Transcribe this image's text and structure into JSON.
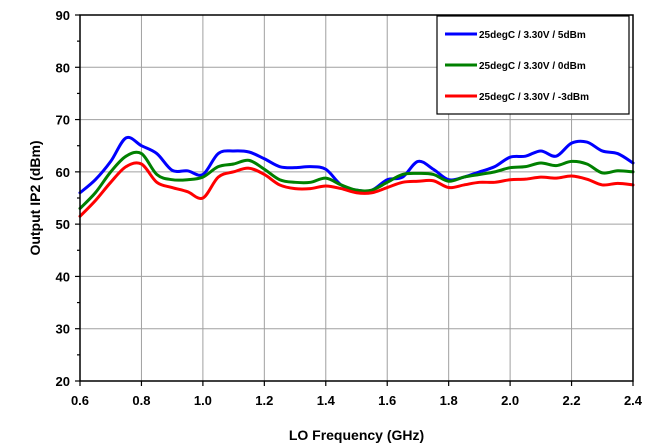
{
  "chart_data": {
    "type": "line",
    "title": "",
    "xlabel": "LO Frequency (GHz)",
    "ylabel": "Output  IP2 (dBm)",
    "xlim": [
      0.6,
      2.4
    ],
    "ylim": [
      20,
      90
    ],
    "xticks": [
      "0.6",
      "0.8",
      "1.0",
      "1.2",
      "1.4",
      "1.6",
      "1.8",
      "2.0",
      "2.2",
      "2.4"
    ],
    "yticks": [
      "20",
      "30",
      "40",
      "50",
      "60",
      "70",
      "80",
      "90"
    ],
    "grid": true,
    "legend_position": "top-right",
    "series": [
      {
        "name": "25degC /  3.30V /  5dBm",
        "color": "#0000ff",
        "x": [
          0.6,
          0.65,
          0.7,
          0.75,
          0.8,
          0.85,
          0.9,
          0.95,
          1.0,
          1.05,
          1.1,
          1.15,
          1.2,
          1.25,
          1.3,
          1.35,
          1.4,
          1.45,
          1.5,
          1.55,
          1.6,
          1.65,
          1.7,
          1.75,
          1.8,
          1.85,
          1.9,
          1.95,
          2.0,
          2.05,
          2.1,
          2.15,
          2.2,
          2.25,
          2.3,
          2.35,
          2.4
        ],
        "y": [
          56.0,
          58.5,
          62.0,
          66.5,
          65.0,
          63.5,
          60.3,
          60.2,
          59.5,
          63.5,
          64.0,
          63.8,
          62.5,
          61.0,
          60.8,
          61.0,
          60.5,
          57.5,
          56.5,
          56.5,
          58.5,
          59.0,
          62.0,
          60.5,
          58.5,
          59.0,
          60.0,
          61.0,
          62.8,
          63.0,
          64.0,
          63.0,
          65.5,
          65.7,
          64.0,
          63.5,
          61.7
        ]
      },
      {
        "name": "25degC /  3.30V /  0dBm",
        "color": "#008000",
        "x": [
          0.6,
          0.65,
          0.7,
          0.75,
          0.8,
          0.85,
          0.9,
          0.95,
          1.0,
          1.05,
          1.1,
          1.15,
          1.2,
          1.25,
          1.3,
          1.35,
          1.4,
          1.45,
          1.5,
          1.55,
          1.6,
          1.65,
          1.7,
          1.75,
          1.8,
          1.85,
          1.9,
          1.95,
          2.0,
          2.05,
          2.1,
          2.15,
          2.2,
          2.25,
          2.3,
          2.35,
          2.4
        ],
        "y": [
          53.0,
          56.0,
          60.0,
          63.0,
          63.5,
          59.5,
          58.5,
          58.5,
          59.0,
          61.0,
          61.5,
          62.2,
          60.5,
          58.5,
          58.0,
          58.0,
          58.8,
          57.5,
          56.5,
          56.5,
          58.0,
          59.5,
          59.7,
          59.5,
          58.2,
          59.0,
          59.5,
          60.0,
          60.8,
          61.0,
          61.7,
          61.2,
          62.0,
          61.5,
          59.8,
          60.2,
          60.0
        ]
      },
      {
        "name": "25degC /  3.30V /  -3dBm",
        "color": "#ff0000",
        "x": [
          0.6,
          0.65,
          0.7,
          0.75,
          0.8,
          0.85,
          0.9,
          0.95,
          1.0,
          1.05,
          1.1,
          1.15,
          1.2,
          1.25,
          1.3,
          1.35,
          1.4,
          1.45,
          1.5,
          1.55,
          1.6,
          1.65,
          1.7,
          1.75,
          1.8,
          1.85,
          1.9,
          1.95,
          2.0,
          2.05,
          2.1,
          2.15,
          2.2,
          2.25,
          2.3,
          2.35,
          2.4
        ],
        "y": [
          51.5,
          54.5,
          58.0,
          61.0,
          61.5,
          58.0,
          57.0,
          56.2,
          55.0,
          59.0,
          60.0,
          60.7,
          59.5,
          57.5,
          56.8,
          56.8,
          57.3,
          56.8,
          56.0,
          56.0,
          57.0,
          58.0,
          58.2,
          58.3,
          57.0,
          57.5,
          58.0,
          58.0,
          58.5,
          58.6,
          59.0,
          58.8,
          59.2,
          58.6,
          57.5,
          57.8,
          57.5
        ]
      }
    ]
  }
}
